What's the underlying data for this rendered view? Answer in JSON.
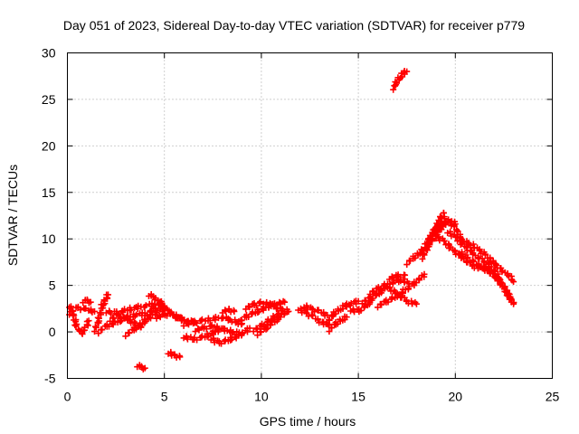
{
  "chart_data": {
    "type": "scatter",
    "title": "Day 051 of 2023, Sidereal Day-to-day VTEC variation (SDTVAR) for receiver p779",
    "xlabel": "GPS time / hours",
    "ylabel": "SDTVAR / TECUs",
    "xlim": [
      0,
      25
    ],
    "ylim": [
      -5,
      30
    ],
    "xticks": [
      0,
      5,
      10,
      15,
      20,
      25
    ],
    "yticks": [
      -5,
      0,
      5,
      10,
      15,
      20,
      25,
      30
    ],
    "grid": true,
    "marker": "+",
    "color": "#ff0000",
    "series": [
      {
        "name": "SDTVAR",
        "tracks": [
          [
            [
              0.1,
              2.8
            ],
            [
              0.3,
              1.8
            ],
            [
              0.5,
              0.5
            ],
            [
              0.7,
              -0.2
            ],
            [
              0.9,
              0.3
            ],
            [
              1.1,
              1.2
            ]
          ],
          [
            [
              0.1,
              2.0
            ],
            [
              0.5,
              2.6
            ],
            [
              1.0,
              2.4
            ],
            [
              1.4,
              2.2
            ]
          ],
          [
            [
              0.8,
              3.3
            ],
            [
              1.0,
              3.4
            ],
            [
              1.2,
              3.2
            ]
          ],
          [
            [
              1.4,
              0.2
            ],
            [
              1.6,
              1.2
            ],
            [
              1.8,
              2.8
            ],
            [
              2.0,
              3.6
            ],
            [
              2.1,
              4.0
            ]
          ],
          [
            [
              1.6,
              0.0
            ],
            [
              2.0,
              0.6
            ],
            [
              2.5,
              1.0
            ],
            [
              3.0,
              1.5
            ],
            [
              3.5,
              1.8
            ],
            [
              4.0,
              2.0
            ]
          ],
          [
            [
              2.0,
              2.2
            ],
            [
              2.5,
              2.0
            ],
            [
              3.0,
              2.3
            ],
            [
              3.5,
              2.6
            ],
            [
              4.0,
              2.8
            ],
            [
              4.5,
              3.0
            ]
          ],
          [
            [
              2.2,
              1.3
            ],
            [
              2.6,
              1.8
            ],
            [
              3.0,
              1.4
            ],
            [
              3.4,
              1.0
            ],
            [
              3.8,
              0.5
            ]
          ],
          [
            [
              3.0,
              -0.3
            ],
            [
              3.4,
              0.2
            ],
            [
              3.8,
              0.8
            ],
            [
              4.2,
              1.5
            ],
            [
              4.6,
              2.2
            ],
            [
              5.0,
              2.5
            ]
          ],
          [
            [
              3.6,
              -3.6
            ],
            [
              3.8,
              -3.8
            ],
            [
              4.0,
              -3.9
            ]
          ],
          [
            [
              4.0,
              1.5
            ],
            [
              4.4,
              2.5
            ],
            [
              4.8,
              3.0
            ],
            [
              5.2,
              2.2
            ],
            [
              5.6,
              1.6
            ],
            [
              6.0,
              1.2
            ]
          ],
          [
            [
              4.2,
              4.0
            ],
            [
              4.4,
              3.8
            ],
            [
              4.6,
              3.5
            ],
            [
              4.8,
              3.2
            ],
            [
              5.0,
              2.8
            ]
          ],
          [
            [
              4.6,
              1.6
            ],
            [
              5.0,
              1.8
            ],
            [
              5.4,
              2.0
            ],
            [
              5.8,
              1.5
            ],
            [
              6.2,
              1.2
            ],
            [
              6.6,
              1.0
            ]
          ],
          [
            [
              5.2,
              -2.2
            ],
            [
              5.5,
              -2.5
            ],
            [
              5.8,
              -2.7
            ]
          ],
          [
            [
              6.0,
              -0.5
            ],
            [
              6.5,
              -0.8
            ],
            [
              7.0,
              -0.6
            ],
            [
              7.4,
              -0.2
            ],
            [
              7.8,
              0.2
            ]
          ],
          [
            [
              6.0,
              0.8
            ],
            [
              6.5,
              1.0
            ],
            [
              7.0,
              1.2
            ],
            [
              7.5,
              1.4
            ],
            [
              8.0,
              1.6
            ],
            [
              8.5,
              1.2
            ],
            [
              9.0,
              0.9
            ]
          ],
          [
            [
              6.6,
              0.2
            ],
            [
              7.0,
              0.4
            ],
            [
              7.5,
              0.6
            ],
            [
              8.0,
              0.3
            ],
            [
              8.5,
              0.0
            ],
            [
              9.0,
              -0.2
            ]
          ],
          [
            [
              7.4,
              -0.7
            ],
            [
              7.8,
              -1.2
            ],
            [
              8.2,
              -1.0
            ],
            [
              8.6,
              -0.6
            ],
            [
              9.0,
              -0.2
            ],
            [
              9.4,
              0.4
            ]
          ],
          [
            [
              8.0,
              2.2
            ],
            [
              8.3,
              2.4
            ],
            [
              8.6,
              2.2
            ]
          ],
          [
            [
              8.8,
              1.0
            ],
            [
              9.2,
              1.6
            ],
            [
              9.6,
              2.0
            ],
            [
              10.0,
              2.4
            ],
            [
              10.4,
              2.8
            ],
            [
              10.8,
              3.0
            ],
            [
              11.2,
              3.2
            ]
          ],
          [
            [
              9.2,
              2.6
            ],
            [
              9.6,
              2.9
            ],
            [
              10.0,
              3.1
            ],
            [
              10.4,
              3.0
            ],
            [
              10.8,
              2.6
            ],
            [
              11.2,
              2.3
            ],
            [
              11.4,
              2.2
            ]
          ],
          [
            [
              9.6,
              0.2
            ],
            [
              10.0,
              0.6
            ],
            [
              10.4,
              1.2
            ],
            [
              10.8,
              1.8
            ],
            [
              11.2,
              2.0
            ]
          ],
          [
            [
              9.8,
              -0.2
            ],
            [
              10.2,
              0.3
            ],
            [
              10.6,
              1.0
            ],
            [
              11.0,
              1.6
            ]
          ],
          [
            [
              11.9,
              2.5
            ],
            [
              12.3,
              2.0
            ],
            [
              12.7,
              1.6
            ],
            [
              13.1,
              1.0
            ],
            [
              13.5,
              0.8
            ]
          ],
          [
            [
              12.2,
              2.8
            ],
            [
              12.6,
              2.4
            ],
            [
              13.0,
              2.2
            ],
            [
              13.4,
              1.8
            ]
          ],
          [
            [
              13.4,
              1.0
            ],
            [
              13.7,
              1.9
            ],
            [
              14.0,
              2.3
            ],
            [
              14.3,
              2.8
            ],
            [
              14.6,
              3.0
            ],
            [
              15.0,
              3.3
            ]
          ],
          [
            [
              13.5,
              0.2
            ],
            [
              13.8,
              0.8
            ],
            [
              14.1,
              1.2
            ],
            [
              14.4,
              1.6
            ]
          ],
          [
            [
              14.6,
              2.4
            ],
            [
              15.0,
              2.2
            ],
            [
              15.4,
              2.8
            ],
            [
              15.7,
              3.4
            ]
          ],
          [
            [
              15.2,
              3.2
            ],
            [
              15.6,
              3.6
            ],
            [
              16.0,
              4.0
            ],
            [
              16.4,
              4.8
            ],
            [
              16.8,
              5.4
            ],
            [
              17.2,
              5.6
            ],
            [
              17.6,
              5.2
            ]
          ],
          [
            [
              15.6,
              4.2
            ],
            [
              16.0,
              4.6
            ],
            [
              16.4,
              5.0
            ],
            [
              16.8,
              4.4
            ],
            [
              17.2,
              3.8
            ],
            [
              17.6,
              3.2
            ],
            [
              18.0,
              3.0
            ]
          ],
          [
            [
              16.0,
              2.8
            ],
            [
              16.4,
              3.2
            ],
            [
              16.8,
              3.6
            ],
            [
              17.2,
              4.2
            ],
            [
              17.6,
              4.8
            ],
            [
              18.0,
              5.4
            ],
            [
              18.4,
              6.2
            ]
          ],
          [
            [
              16.6,
              5.8
            ],
            [
              17.0,
              6.0
            ],
            [
              17.4,
              6.1
            ]
          ],
          [
            [
              16.8,
              26.2
            ],
            [
              16.9,
              26.6
            ],
            [
              17.1,
              27.2
            ],
            [
              17.3,
              27.8
            ],
            [
              17.5,
              28.0
            ]
          ],
          [
            [
              17.5,
              7.4
            ],
            [
              17.8,
              7.9
            ],
            [
              18.1,
              8.3
            ],
            [
              18.4,
              9.0
            ],
            [
              18.7,
              10.2
            ],
            [
              19.0,
              11.2
            ],
            [
              19.2,
              12.2
            ],
            [
              19.4,
              12.8
            ]
          ],
          [
            [
              18.3,
              8.0
            ],
            [
              18.6,
              9.2
            ],
            [
              18.9,
              10.2
            ],
            [
              19.2,
              11.0
            ],
            [
              19.5,
              11.8
            ]
          ],
          [
            [
              18.5,
              9.2
            ],
            [
              18.8,
              10.4
            ],
            [
              19.1,
              11.2
            ],
            [
              19.4,
              11.6
            ],
            [
              19.8,
              12.0
            ],
            [
              20.0,
              11.6
            ]
          ],
          [
            [
              19.0,
              10.2
            ],
            [
              19.4,
              9.8
            ],
            [
              19.8,
              9.0
            ],
            [
              20.2,
              8.2
            ],
            [
              20.6,
              7.6
            ],
            [
              21.0,
              7.0
            ],
            [
              21.4,
              6.8
            ],
            [
              21.8,
              6.6
            ]
          ],
          [
            [
              19.3,
              12.4
            ],
            [
              19.7,
              11.8
            ],
            [
              20.0,
              11.2
            ],
            [
              20.2,
              10.4
            ],
            [
              20.4,
              9.8
            ],
            [
              20.8,
              9.4
            ],
            [
              21.2,
              8.8
            ],
            [
              21.6,
              8.2
            ],
            [
              22.0,
              7.4
            ],
            [
              22.4,
              6.6
            ],
            [
              22.8,
              6.0
            ],
            [
              23.0,
              5.4
            ]
          ],
          [
            [
              19.6,
              10.8
            ],
            [
              20.0,
              10.2
            ],
            [
              20.4,
              9.4
            ],
            [
              20.8,
              8.6
            ],
            [
              21.2,
              8.0
            ],
            [
              21.6,
              7.4
            ],
            [
              22.0,
              6.6
            ],
            [
              22.4,
              5.2
            ],
            [
              22.8,
              3.8
            ],
            [
              23.0,
              3.0
            ]
          ],
          [
            [
              20.2,
              8.6
            ],
            [
              20.6,
              8.0
            ],
            [
              21.0,
              7.4
            ],
            [
              21.4,
              7.0
            ],
            [
              21.8,
              6.4
            ],
            [
              22.2,
              5.6
            ],
            [
              22.6,
              4.4
            ],
            [
              22.9,
              3.4
            ]
          ]
        ]
      }
    ]
  }
}
